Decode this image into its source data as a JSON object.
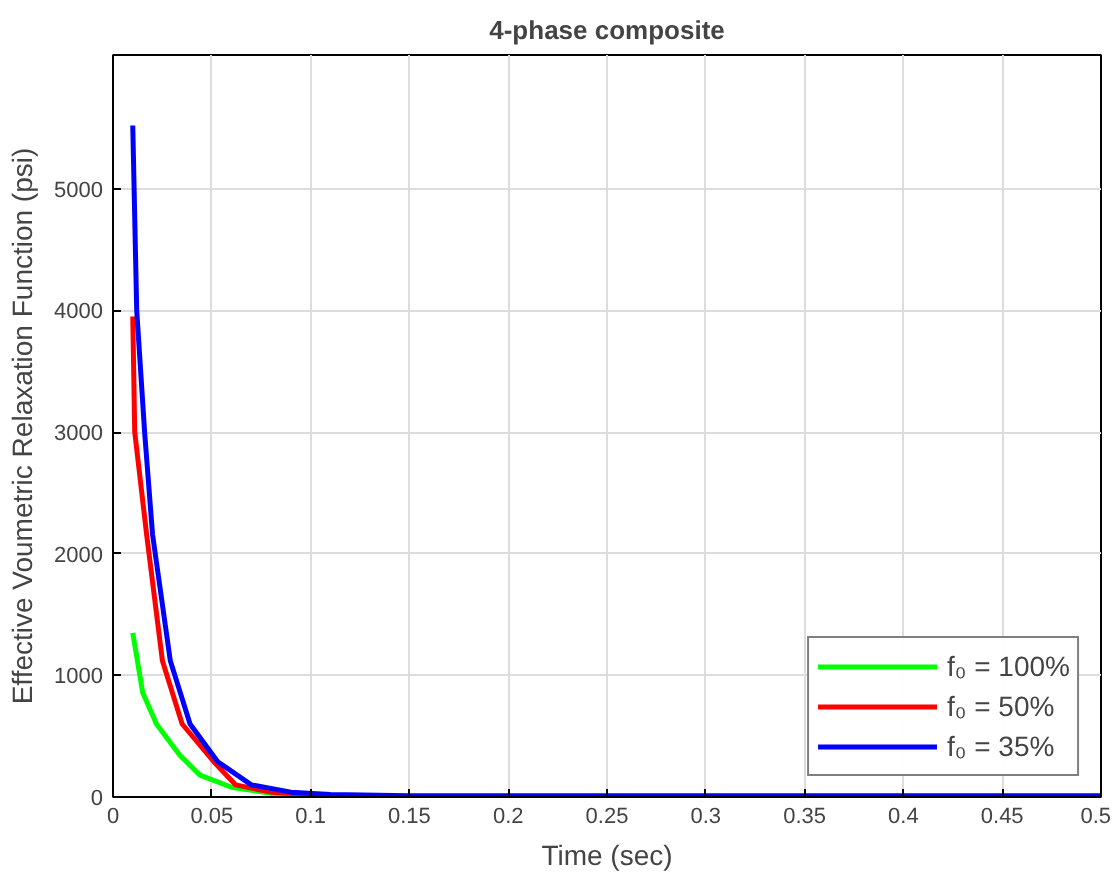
{
  "chart_data": {
    "type": "line",
    "title": "4-phase composite",
    "xlabel": "Time (sec)",
    "ylabel": "Effective Voumetric Relaxation Function (psi)",
    "xlim": [
      0,
      0.5
    ],
    "xticks": [
      0,
      0.05,
      0.1,
      0.15,
      0.2,
      0.25,
      0.3,
      0.35,
      0.4,
      0.45,
      0.5
    ],
    "ylim": [
      0,
      6100
    ],
    "yticks": [
      0,
      1000,
      2000,
      3000,
      4000,
      5000
    ],
    "grid": true,
    "legend": "bottom right",
    "line_style": "solid",
    "series": [
      {
        "name": "f₀ = 100%",
        "color": "#00ff00",
        "x": [
          0.01,
          0.015,
          0.022,
          0.034,
          0.044,
          0.06,
          0.08,
          0.1
        ],
        "values": [
          1350,
          860,
          600,
          340,
          180,
          80,
          30,
          20
        ]
      },
      {
        "name": "f₀ = 50%",
        "color": "#ff0000",
        "x": [
          0.01,
          0.011,
          0.017,
          0.025,
          0.035,
          0.051,
          0.062,
          0.08,
          0.1
        ],
        "values": [
          3950,
          3000,
          2160,
          1120,
          600,
          290,
          100,
          40,
          20
        ]
      },
      {
        "name": "f₀ = 35%",
        "color": "#0000ff",
        "x": [
          0.01,
          0.012,
          0.016,
          0.02,
          0.029,
          0.039,
          0.053,
          0.07,
          0.09,
          0.11,
          0.15,
          0.2,
          0.3,
          0.4,
          0.5
        ],
        "values": [
          5520,
          4000,
          3000,
          2160,
          1120,
          600,
          290,
          100,
          40,
          20,
          10,
          10,
          10,
          10,
          10
        ]
      }
    ]
  }
}
